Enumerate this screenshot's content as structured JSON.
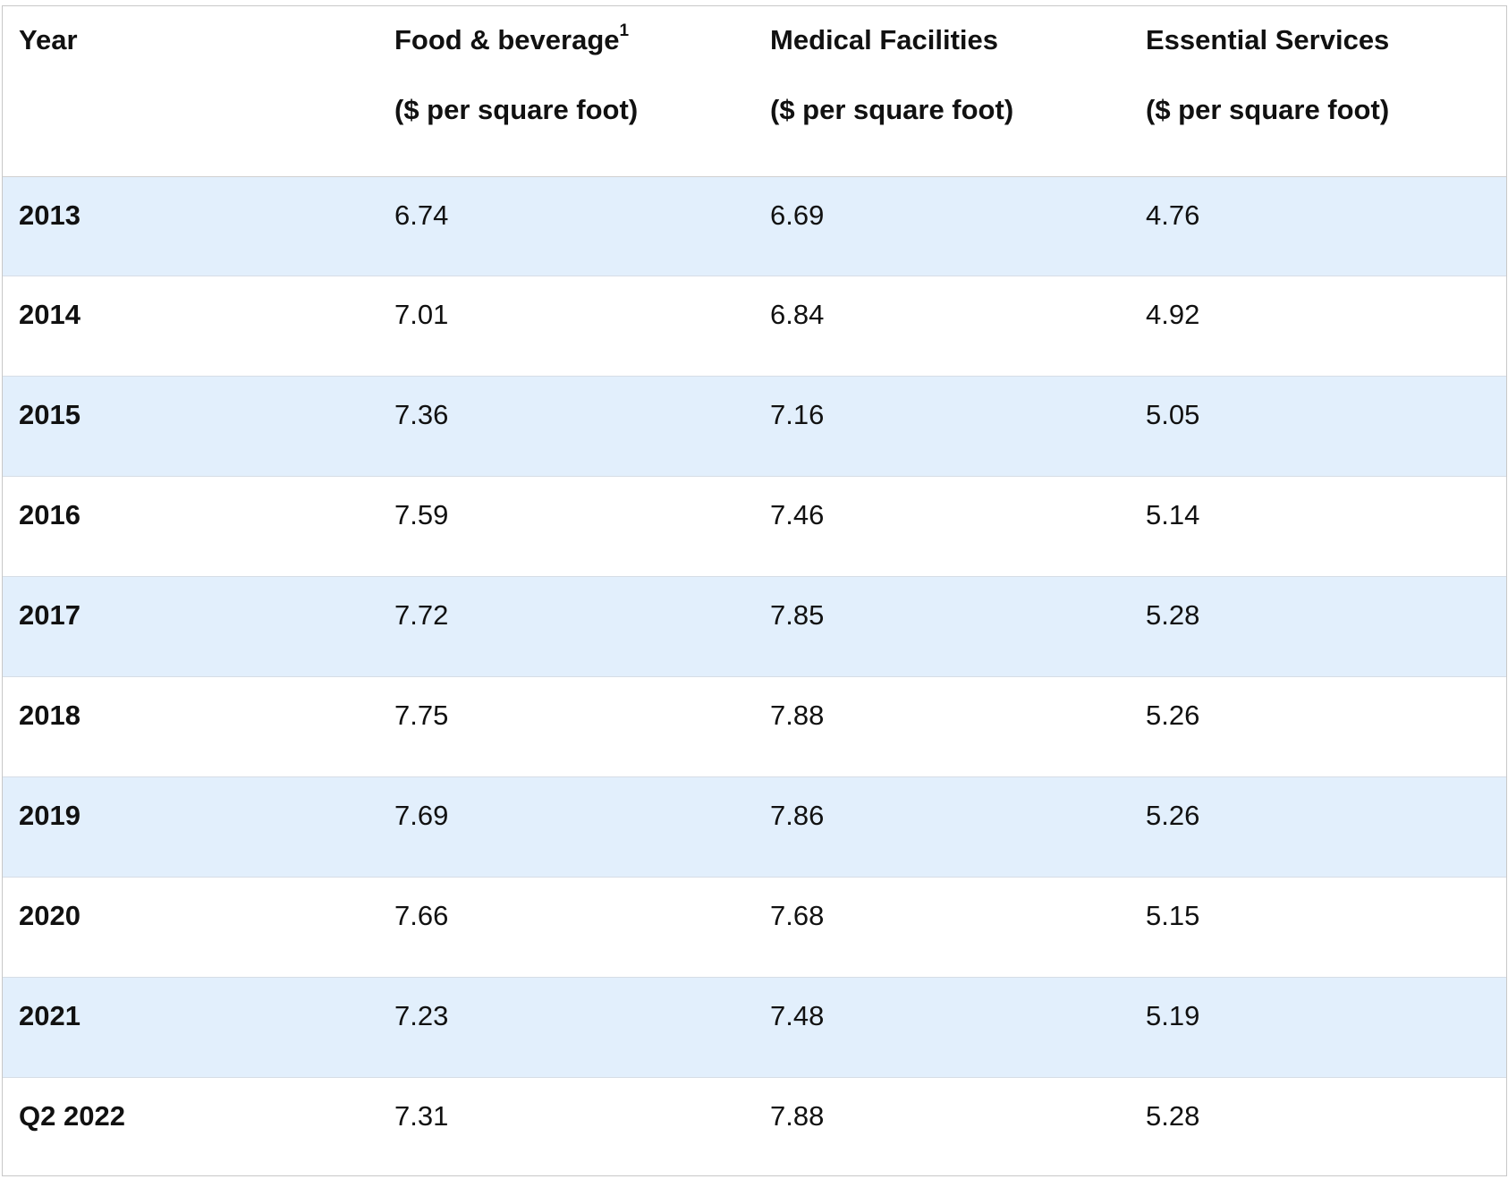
{
  "table": {
    "headers": [
      {
        "line1": "Year",
        "sup": "",
        "line2": ""
      },
      {
        "line1": "Food & beverage",
        "sup": "1",
        "line2": "($ per square foot)"
      },
      {
        "line1": "Medical Facilities",
        "sup": "",
        "line2": "($ per square foot)"
      },
      {
        "line1": "Essential Services",
        "sup": "",
        "line2": "($ per square foot)"
      }
    ],
    "rows": [
      {
        "year": "2013",
        "food": "6.74",
        "medical": "6.69",
        "essential": "4.76"
      },
      {
        "year": "2014",
        "food": "7.01",
        "medical": "6.84",
        "essential": "4.92"
      },
      {
        "year": "2015",
        "food": "7.36",
        "medical": "7.16",
        "essential": "5.05"
      },
      {
        "year": "2016",
        "food": "7.59",
        "medical": "7.46",
        "essential": "5.14"
      },
      {
        "year": "2017",
        "food": "7.72",
        "medical": "7.85",
        "essential": "5.28"
      },
      {
        "year": "2018",
        "food": "7.75",
        "medical": "7.88",
        "essential": "5.26"
      },
      {
        "year": "2019",
        "food": "7.69",
        "medical": "7.86",
        "essential": "5.26"
      },
      {
        "year": "2020",
        "food": "7.66",
        "medical": "7.68",
        "essential": "5.15"
      },
      {
        "year": "2021",
        "food": "7.23",
        "medical": "7.48",
        "essential": "5.19"
      },
      {
        "year": "Q2 2022",
        "food": "7.31",
        "medical": "7.88",
        "essential": "5.28"
      }
    ]
  },
  "colors": {
    "shaded_row": "#e2effc",
    "border": "#c8c8c8",
    "text": "#111111"
  }
}
